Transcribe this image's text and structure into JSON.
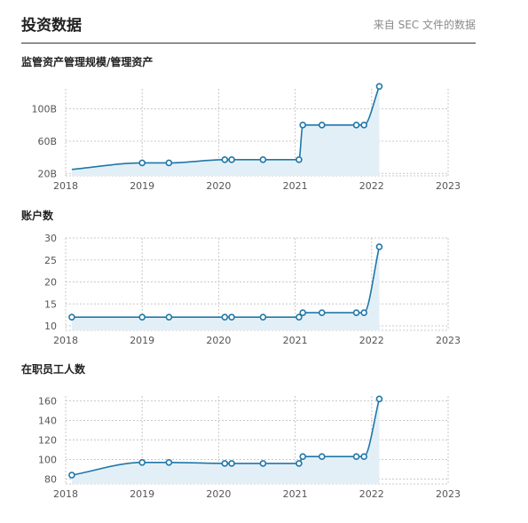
{
  "header": {
    "title": "投资数据",
    "source_note": "来自 SEC 文件的数据"
  },
  "colors": {
    "line": "#1f77a8",
    "fill": "#e3eff7",
    "grid": "#c8c8c8",
    "marker_fill": "#ffffff"
  },
  "chart_data": [
    {
      "type": "area",
      "title": "监管资产管理规模/管理资产",
      "x_tick_labels": [
        "2018",
        "2019",
        "2020",
        "2021",
        "2022",
        "2023"
      ],
      "y_tick_labels": [
        "20B",
        "60B",
        "100B"
      ],
      "x_range": [
        2018.0,
        2023.0
      ],
      "y_range": [
        17,
        125
      ],
      "y_ticks": [
        20,
        60,
        100
      ],
      "grid": true,
      "x": [
        2018.08,
        2019.0,
        2019.35,
        2020.08,
        2020.17,
        2020.58,
        2021.05,
        2021.1,
        2021.35,
        2021.8,
        2021.9,
        2022.1
      ],
      "values": [
        25,
        33,
        33,
        37,
        37,
        37,
        37,
        80,
        80,
        80,
        80,
        128
      ],
      "markers": [
        false,
        true,
        true,
        true,
        true,
        true,
        true,
        true,
        true,
        true,
        true,
        true
      ]
    },
    {
      "type": "area",
      "title": "账户数",
      "x_tick_labels": [
        "2018",
        "2019",
        "2020",
        "2021",
        "2022",
        "2023"
      ],
      "y_tick_labels": [
        "10",
        "15",
        "20",
        "25",
        "30"
      ],
      "x_range": [
        2018.0,
        2023.0
      ],
      "y_range": [
        9,
        30
      ],
      "y_ticks": [
        10,
        15,
        20,
        25,
        30
      ],
      "grid": true,
      "x": [
        2018.08,
        2019.0,
        2019.35,
        2020.08,
        2020.17,
        2020.58,
        2021.05,
        2021.1,
        2021.35,
        2021.8,
        2021.9,
        2022.1
      ],
      "values": [
        12,
        12,
        12,
        12,
        12,
        12,
        12,
        13,
        13,
        13,
        13,
        28
      ],
      "markers": [
        true,
        true,
        true,
        true,
        true,
        true,
        true,
        true,
        true,
        true,
        true,
        true
      ]
    },
    {
      "type": "area",
      "title": "在职员工人数",
      "x_tick_labels": [
        "2018",
        "2019",
        "2020",
        "2021",
        "2022",
        "2023"
      ],
      "y_tick_labels": [
        "80",
        "100",
        "120",
        "140",
        "160"
      ],
      "x_range": [
        2018.0,
        2023.0
      ],
      "y_range": [
        75,
        165
      ],
      "y_ticks": [
        80,
        100,
        120,
        140,
        160
      ],
      "grid": true,
      "x": [
        2018.08,
        2019.0,
        2019.35,
        2020.08,
        2020.17,
        2020.58,
        2021.05,
        2021.1,
        2021.35,
        2021.8,
        2021.9,
        2022.1
      ],
      "values": [
        84,
        97,
        97,
        96,
        96,
        96,
        96,
        103,
        103,
        103,
        103,
        162
      ],
      "markers": [
        true,
        true,
        true,
        true,
        true,
        true,
        true,
        true,
        true,
        true,
        true,
        true
      ]
    }
  ]
}
